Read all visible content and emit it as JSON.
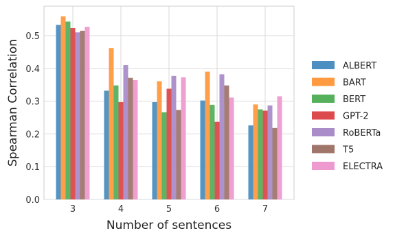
{
  "chart_data": {
    "type": "bar",
    "xlabel": "Number of sentences",
    "ylabel": "Spearman Correlation",
    "categories": [
      "3",
      "4",
      "5",
      "6",
      "7"
    ],
    "ylim": [
      0,
      0.59
    ],
    "yticks": [
      0.0,
      0.1,
      0.2,
      0.3,
      0.4,
      0.5
    ],
    "ytick_labels": [
      "0.0",
      "0.1",
      "0.2",
      "0.3",
      "0.4",
      "0.5"
    ],
    "grid": true,
    "legend_position": "right",
    "series": [
      {
        "name": "ALBERT",
        "color": "#4c8fc0",
        "values": [
          0.533,
          0.332,
          0.297,
          0.302,
          0.226
        ]
      },
      {
        "name": "BART",
        "color": "#ff9a40",
        "values": [
          0.559,
          0.462,
          0.361,
          0.39,
          0.29
        ]
      },
      {
        "name": "BERT",
        "color": "#55b05c",
        "values": [
          0.543,
          0.348,
          0.266,
          0.289,
          0.275
        ]
      },
      {
        "name": "GPT-2",
        "color": "#dc4a4c",
        "values": [
          0.523,
          0.297,
          0.338,
          0.237,
          0.271
        ]
      },
      {
        "name": "RoBERTa",
        "color": "#a98cc8",
        "values": [
          0.51,
          0.41,
          0.377,
          0.382,
          0.287
        ]
      },
      {
        "name": "T5",
        "color": "#a0766a",
        "values": [
          0.515,
          0.371,
          0.273,
          0.348,
          0.218
        ]
      },
      {
        "name": "ELECTRA",
        "color": "#ee9ad0",
        "values": [
          0.527,
          0.364,
          0.373,
          0.311,
          0.315
        ]
      }
    ]
  }
}
